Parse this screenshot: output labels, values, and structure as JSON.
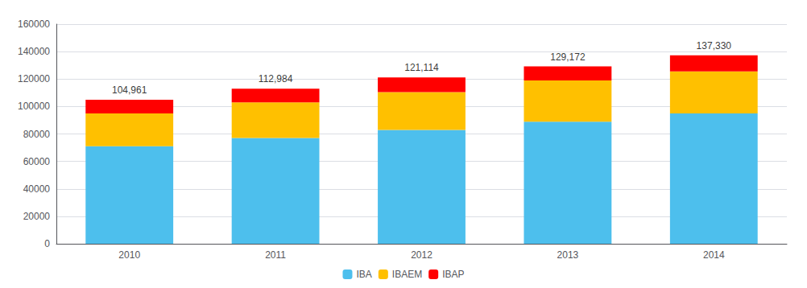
{
  "chart_data": {
    "type": "bar",
    "stacked": true,
    "categories": [
      "2010",
      "2011",
      "2012",
      "2013",
      "2014"
    ],
    "series": [
      {
        "name": "IBA",
        "color": "#4DBFED",
        "values": [
          71000,
          77000,
          83000,
          89000,
          95000
        ]
      },
      {
        "name": "IBAEM",
        "color": "#FFC000",
        "values": [
          24000,
          26000,
          27500,
          30000,
          30500
        ]
      },
      {
        "name": "IBAP",
        "color": "#FF0000",
        "values": [
          9961,
          9984,
          10614,
          10172,
          11830
        ]
      }
    ],
    "totals": [
      104961,
      112984,
      121114,
      129172,
      137330
    ],
    "total_labels": [
      "104,961",
      "112,984",
      "121,114",
      "129,172",
      "137,330"
    ],
    "ylim": [
      0,
      160000
    ],
    "yticks": [
      0,
      20000,
      40000,
      60000,
      80000,
      100000,
      120000,
      140000,
      160000
    ],
    "grid": true,
    "legend": "bottom"
  }
}
